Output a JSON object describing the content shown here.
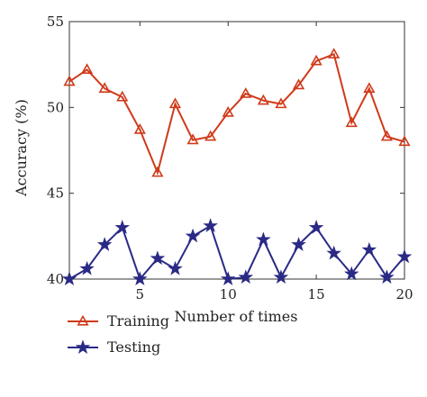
{
  "chart_data": {
    "type": "line",
    "xlabel": "Number of times",
    "ylabel": "Accuracy (%)",
    "xlim": [
      1,
      20
    ],
    "ylim": [
      40,
      55
    ],
    "xticks": [
      5,
      10,
      15,
      20
    ],
    "yticks": [
      40,
      45,
      50,
      55
    ],
    "grid": false,
    "legend_position": "bottom-left, below the plot",
    "x": [
      1,
      2,
      3,
      4,
      5,
      6,
      7,
      8,
      9,
      10,
      11,
      12,
      13,
      14,
      15,
      16,
      17,
      18,
      19,
      20
    ],
    "series": [
      {
        "name": "Training",
        "marker": "triangle",
        "color": "#d03a1a",
        "values": [
          51.5,
          52.2,
          51.1,
          50.6,
          48.7,
          46.2,
          50.2,
          48.1,
          48.3,
          49.7,
          50.8,
          50.4,
          50.2,
          51.3,
          52.7,
          53.1,
          49.1,
          51.1,
          48.3,
          48.0
        ]
      },
      {
        "name": "Testing",
        "marker": "star",
        "color": "#2a2a86",
        "values": [
          40.0,
          40.6,
          42.0,
          43.0,
          40.0,
          41.2,
          40.6,
          42.5,
          43.1,
          40.0,
          40.1,
          42.3,
          40.1,
          42.0,
          43.0,
          41.5,
          40.3,
          41.7,
          40.1,
          41.3
        ]
      }
    ]
  }
}
